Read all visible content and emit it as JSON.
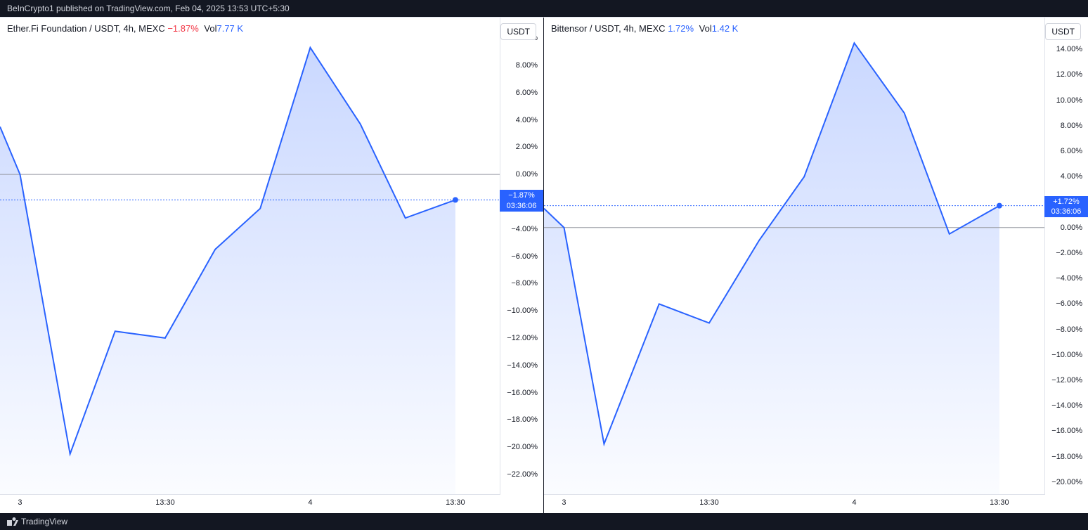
{
  "header": {
    "text": "BeInCrypto1 published on TradingView.com, Feb 04, 2025 13:53 UTC+5:30"
  },
  "footer": {
    "brand": "TradingView"
  },
  "charts": [
    {
      "title_symbol": "Ether.Fi Foundation / USDT, 4h, MEXC",
      "pct_change": "−1.87%",
      "pct_class": "pct-neg",
      "vol_label": "Vol",
      "vol_value": "7.77 K",
      "axis_label": "USDT",
      "type": "area",
      "colors": {
        "line": "#2962ff",
        "fill_top": "rgba(41,98,255,0.25)",
        "fill_bottom": "rgba(41,98,255,0.02)",
        "zero_line": "#9598a1",
        "dotted": "#2962ff",
        "background": "#ffffff"
      },
      "y_axis": {
        "min": -23.5,
        "max": 11.5,
        "ticks": [
          10,
          8,
          6,
          4,
          2,
          0,
          -2,
          -4,
          -6,
          -8,
          -10,
          -12,
          -14,
          -16,
          -18,
          -20,
          -22
        ],
        "unit": "%"
      },
      "x_axis": {
        "ticks": [
          {
            "pos": 0.04,
            "label": "3"
          },
          {
            "pos": 0.33,
            "label": "13:30"
          },
          {
            "pos": 0.62,
            "label": "4"
          },
          {
            "pos": 0.91,
            "label": "13:30"
          }
        ]
      },
      "data": [
        {
          "x": 0.0,
          "y": 3.5
        },
        {
          "x": 0.04,
          "y": 0.0
        },
        {
          "x": 0.14,
          "y": -20.5
        },
        {
          "x": 0.23,
          "y": -11.5
        },
        {
          "x": 0.33,
          "y": -12.0
        },
        {
          "x": 0.43,
          "y": -5.5
        },
        {
          "x": 0.52,
          "y": -2.5
        },
        {
          "x": 0.62,
          "y": 9.3
        },
        {
          "x": 0.72,
          "y": 3.7
        },
        {
          "x": 0.81,
          "y": -3.2
        },
        {
          "x": 0.91,
          "y": -1.87
        }
      ],
      "current_value": -1.87,
      "flag": {
        "pct": "−1.87%",
        "countdown": "03:36:06"
      }
    },
    {
      "title_symbol": "Bittensor / USDT, 4h, MEXC",
      "pct_change": "1.72%",
      "pct_class": "pct-pos",
      "vol_label": "Vol",
      "vol_value": "1.42 K",
      "axis_label": "USDT",
      "type": "area",
      "colors": {
        "line": "#2962ff",
        "fill_top": "rgba(41,98,255,0.25)",
        "fill_bottom": "rgba(41,98,255,0.02)",
        "zero_line": "#9598a1",
        "dotted": "#2962ff",
        "background": "#ffffff"
      },
      "y_axis": {
        "min": -21.0,
        "max": 16.5,
        "ticks": [
          14,
          12,
          10,
          8,
          6,
          4,
          2,
          0,
          -2,
          -4,
          -6,
          -8,
          -10,
          -12,
          -14,
          -16,
          -18,
          -20
        ],
        "unit": "%"
      },
      "x_axis": {
        "ticks": [
          {
            "pos": 0.04,
            "label": "3"
          },
          {
            "pos": 0.33,
            "label": "13:30"
          },
          {
            "pos": 0.62,
            "label": "4"
          },
          {
            "pos": 0.91,
            "label": "13:30"
          }
        ]
      },
      "data": [
        {
          "x": 0.0,
          "y": 1.5
        },
        {
          "x": 0.04,
          "y": 0.0
        },
        {
          "x": 0.12,
          "y": -17.0
        },
        {
          "x": 0.23,
          "y": -6.0
        },
        {
          "x": 0.33,
          "y": -7.5
        },
        {
          "x": 0.43,
          "y": -1.0
        },
        {
          "x": 0.52,
          "y": 4.0
        },
        {
          "x": 0.62,
          "y": 14.5
        },
        {
          "x": 0.72,
          "y": 9.0
        },
        {
          "x": 0.81,
          "y": -0.5
        },
        {
          "x": 0.91,
          "y": 1.72
        }
      ],
      "current_value": 1.72,
      "flag": {
        "pct": "+1.72%",
        "countdown": "03:36:06"
      }
    }
  ]
}
